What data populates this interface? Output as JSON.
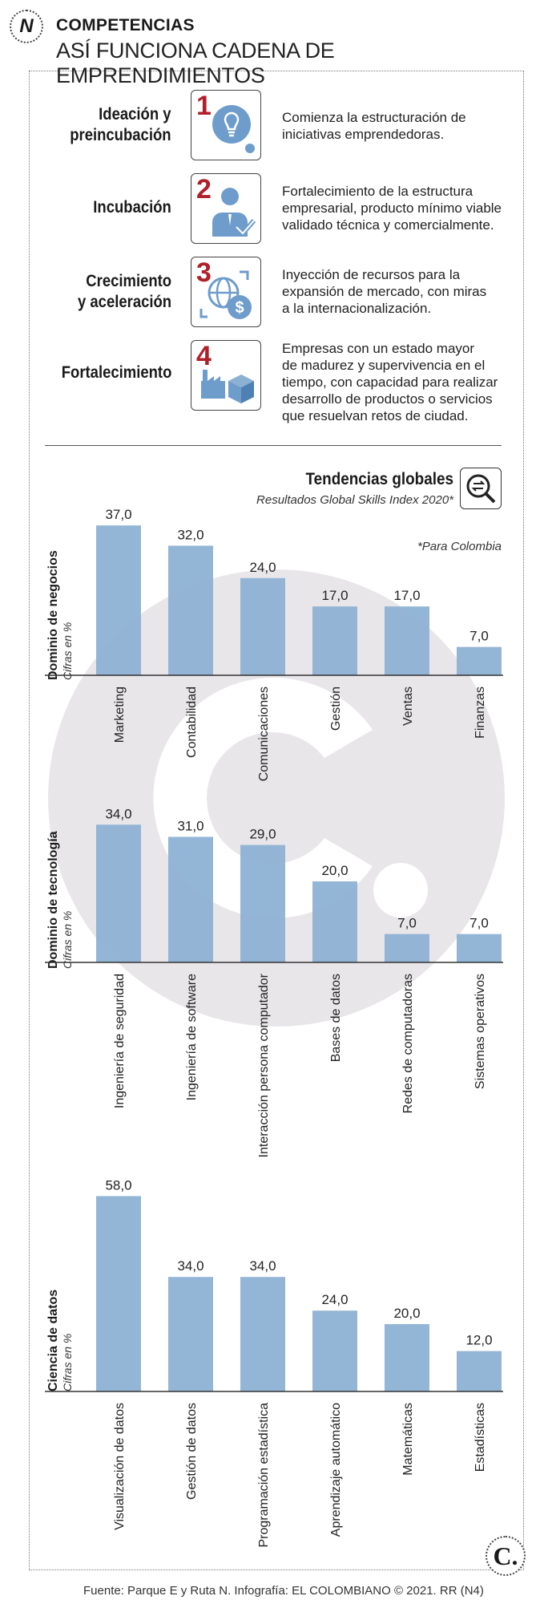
{
  "header": {
    "logo_letter": "N",
    "kicker": "COMPETENCIAS",
    "headline": "ASÍ FUNCIONA CADENA DE EMPRENDIMIENTOS"
  },
  "stages": [
    {
      "number": "1",
      "name_line1": "Ideación y",
      "name_line2": "preincubación",
      "icon": "lightbulb-icon",
      "desc_lines": [
        "Comienza la estructuración de",
        "iniciativas emprendedoras."
      ]
    },
    {
      "number": "2",
      "name_line1": "Incubación",
      "name_line2": "",
      "icon": "businessperson-check-icon",
      "desc_lines": [
        "Fortalecimiento de la estructura",
        "empresarial, producto mínimo viable",
        "validado técnica y comercialmente."
      ]
    },
    {
      "number": "3",
      "name_line1": "Crecimiento",
      "name_line2": "y aceleración",
      "icon": "globe-money-icon",
      "desc_lines": [
        "Inyección de recursos para la",
        "expansión de mercado, con miras",
        "a la internacionalización."
      ]
    },
    {
      "number": "4",
      "name_line1": "Fortalecimiento",
      "name_line2": "",
      "icon": "factory-box-icon",
      "desc_lines": [
        "Empresas con un estado mayor",
        "de madurez y supervivencia en el",
        "tiempo, con capacidad para realizar",
        "desarrollo de productos o servicios",
        "que resuelvan retos de ciudad."
      ]
    }
  ],
  "trends": {
    "title": "Tendencias globales",
    "subtitle": "Resultados Global Skills Index 2020*",
    "footnote": "*Para Colombia",
    "icon": "magnifier-arrows-icon"
  },
  "colors": {
    "bar": "#8bb0d2",
    "accent": "#b0202a",
    "icon_blue": "#6e9ccb"
  },
  "chart_data": [
    {
      "type": "bar",
      "title": "Dominio de negocios",
      "ylabel": "Cifras en %",
      "categories": [
        "Marketing",
        "Contabilidad",
        "Comunicaciones",
        "Gestión",
        "Ventas",
        "Finanzas"
      ],
      "values": [
        37.0,
        32.0,
        24.0,
        17.0,
        17.0,
        7.0
      ],
      "value_labels": [
        "37,0",
        "32,0",
        "24,0",
        "17,0",
        "17,0",
        "7,0"
      ]
    },
    {
      "type": "bar",
      "title": "Dominio de tecnología",
      "ylabel": "Cifras en %",
      "categories": [
        "Ingeniería de seguridad",
        "Ingeniería de software",
        "Interacción persona computador",
        "Bases de datos",
        "Redes de computadoras",
        "Sistemas operativos"
      ],
      "values": [
        34.0,
        31.0,
        29.0,
        20.0,
        7.0,
        7.0
      ],
      "value_labels": [
        "34,0",
        "31,0",
        "29,0",
        "20,0",
        "7,0",
        "7,0"
      ]
    },
    {
      "type": "bar",
      "title": "Ciencia de datos",
      "ylabel": "Cifras en %",
      "categories": [
        "Visualización de datos",
        "Gestión de datos",
        "Programación estadística",
        "Aprendizaje automático",
        "Matemáticas",
        "Estadísticas"
      ],
      "values": [
        58.0,
        34.0,
        34.0,
        24.0,
        20.0,
        12.0
      ],
      "value_labels": [
        "58,0",
        "34,0",
        "34,0",
        "24,0",
        "20,0",
        "12,0"
      ]
    }
  ],
  "footer": {
    "source": "Fuente: Parque E y Ruta N. Infografía: EL COLOMBIANO © 2021. RR (N4)",
    "logo_letter": "C."
  }
}
